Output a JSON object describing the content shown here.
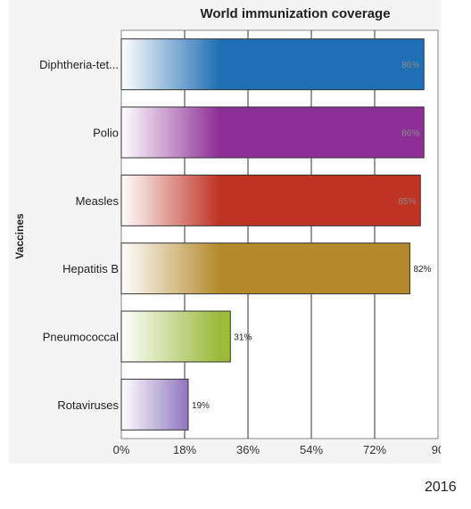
{
  "chart_data": {
    "type": "bar",
    "orientation": "horizontal",
    "title": "World immunization coverage",
    "ylabel": "Vaccines",
    "xlabel": "",
    "categories": [
      "Diphtheria-tet...",
      "Polio",
      "Measles",
      "Hepatitis B",
      "Pneumococcal",
      "Rotaviruses"
    ],
    "values": [
      86,
      86,
      85,
      82,
      31,
      19
    ],
    "value_labels": [
      "86%",
      "86%",
      "85%",
      "82%",
      "31%",
      "19%"
    ],
    "colors": [
      "#1f6fb5",
      "#8e2f96",
      "#bf3324",
      "#b48a2c",
      "#9bba3a",
      "#5b36a0"
    ],
    "xlim": [
      0,
      90
    ],
    "x_ticks": [
      0,
      18,
      36,
      54,
      72,
      90
    ],
    "x_tick_labels": [
      "0%",
      "18%",
      "36%",
      "54%",
      "72%",
      "90"
    ],
    "grid": true,
    "legend": "none"
  },
  "footer": {
    "year": "2016"
  }
}
